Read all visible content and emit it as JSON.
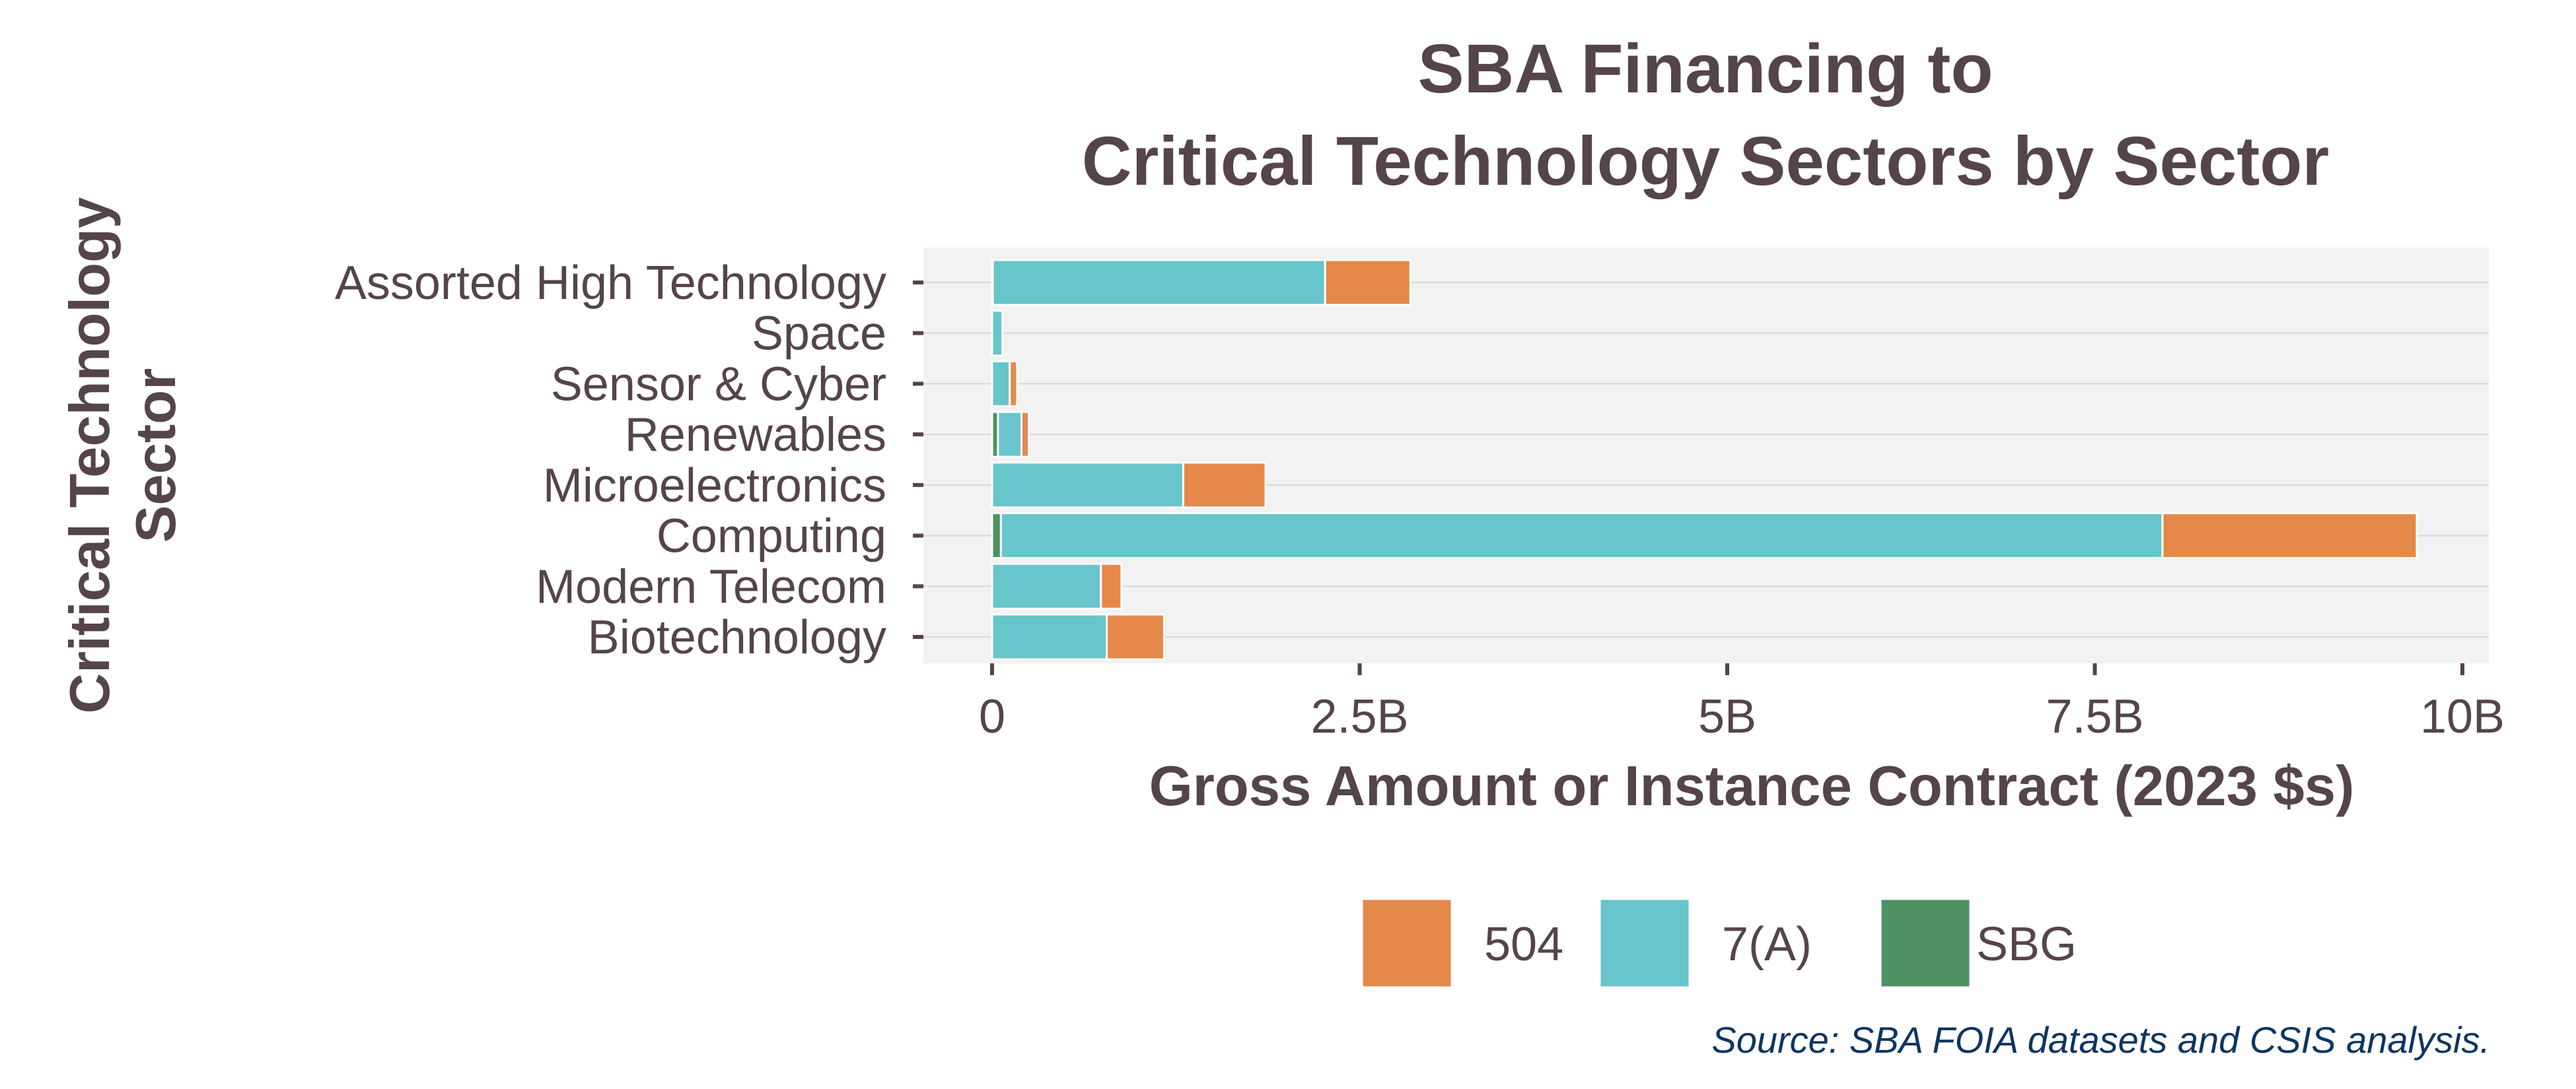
{
  "chart_data": {
    "type": "bar",
    "orientation": "horizontal",
    "stacked": true,
    "title": "SBA Financing to\nCritical Technology Sectors by Sector",
    "xlabel": "Gross Amount or Instance Contract (2023 $s)",
    "ylabel": "Critical Technology\nSector",
    "categories": [
      "Assorted High Technology",
      "Space",
      "Sensor & Cyber",
      "Renewables",
      "Microelectronics",
      "Computing",
      "Modern Telecom",
      "Biotechnology"
    ],
    "series": [
      {
        "name": "SBG",
        "color": "#4e9263",
        "values": [
          0.005,
          0.0,
          0.0,
          0.04,
          0.0,
          0.06,
          0.0,
          0.0
        ]
      },
      {
        "name": "7(A)",
        "color": "#67c5cb",
        "values": [
          2.26,
          0.07,
          0.12,
          0.16,
          1.3,
          7.9,
          0.74,
          0.78
        ]
      },
      {
        "name": "504",
        "color": "#e5894a",
        "values": [
          0.58,
          0.0,
          0.05,
          0.05,
          0.56,
          1.73,
          0.14,
          0.39
        ]
      }
    ],
    "xlim": [
      0,
      10
    ],
    "x_unit": "billions of 2023 dollars",
    "xticks": [
      0,
      2.5,
      5,
      7.5,
      10
    ],
    "xtick_labels": [
      "0",
      "2.5B",
      "5B",
      "7.5B",
      "10B"
    ],
    "legend": {
      "position": "bottom",
      "entries": [
        {
          "label": "504",
          "color": "#e5894a"
        },
        {
          "label": "7(A)",
          "color": "#67c5cb"
        },
        {
          "label": "SBG",
          "color": "#4e9263"
        }
      ]
    },
    "grid": true,
    "panel_background": "#f2f2f2",
    "text_color": "#554449"
  },
  "source_note": "Source:  SBA FOIA datasets and CSIS analysis."
}
